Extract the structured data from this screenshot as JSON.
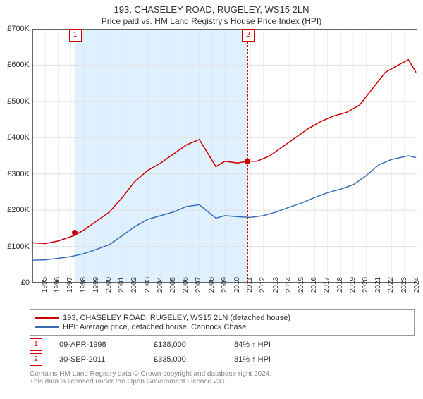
{
  "title": "193, CHASELEY ROAD, RUGELEY, WS15 2LN",
  "subtitle": "Price paid vs. HM Land Registry's House Price Index (HPI)",
  "chart": {
    "type": "line",
    "background_color": "#ffffff",
    "grid_color": "#e0e0e0",
    "shade_color": "#dff0ff",
    "axis_color": "#666666",
    "title_fontsize": 13,
    "label_fontsize": 11,
    "tick_fontsize": 10,
    "x": {
      "start_year": 1995,
      "end_year": 2025,
      "tick_step": 1
    },
    "y": {
      "min": 0,
      "max": 700000,
      "tick_step": 100000,
      "tick_labels": [
        "£0",
        "£100K",
        "£200K",
        "£300K",
        "£400K",
        "£500K",
        "£600K",
        "£700K"
      ]
    },
    "series": [
      {
        "name": "193, CHASELEY ROAD, RUGELEY, WS15 2LN (detached house)",
        "color": "#cc0000",
        "line_width": 1.5,
        "data": [
          [
            1995.0,
            110000
          ],
          [
            1996.0,
            108000
          ],
          [
            1997.0,
            115000
          ],
          [
            1998.25,
            130000
          ],
          [
            1999.0,
            145000
          ],
          [
            2000.0,
            170000
          ],
          [
            2001.0,
            195000
          ],
          [
            2002.0,
            235000
          ],
          [
            2003.0,
            280000
          ],
          [
            2004.0,
            310000
          ],
          [
            2005.0,
            330000
          ],
          [
            2006.0,
            355000
          ],
          [
            2007.0,
            380000
          ],
          [
            2008.0,
            395000
          ],
          [
            2008.7,
            355000
          ],
          [
            2009.3,
            320000
          ],
          [
            2010.0,
            335000
          ],
          [
            2011.0,
            330000
          ],
          [
            2011.75,
            335000
          ],
          [
            2012.5,
            335000
          ],
          [
            2013.5,
            350000
          ],
          [
            2014.5,
            375000
          ],
          [
            2015.5,
            400000
          ],
          [
            2016.5,
            425000
          ],
          [
            2017.5,
            445000
          ],
          [
            2018.5,
            460000
          ],
          [
            2019.5,
            470000
          ],
          [
            2020.5,
            490000
          ],
          [
            2021.5,
            535000
          ],
          [
            2022.5,
            580000
          ],
          [
            2023.5,
            600000
          ],
          [
            2024.3,
            615000
          ],
          [
            2024.9,
            580000
          ]
        ]
      },
      {
        "name": "HPI: Average price, detached house, Cannock Chase",
        "color": "#3a6fb7",
        "line_width": 1.5,
        "data": [
          [
            1995.0,
            62000
          ],
          [
            1996.0,
            63000
          ],
          [
            1997.0,
            67000
          ],
          [
            1998.0,
            72000
          ],
          [
            1999.0,
            80000
          ],
          [
            2000.0,
            92000
          ],
          [
            2001.0,
            105000
          ],
          [
            2002.0,
            130000
          ],
          [
            2003.0,
            155000
          ],
          [
            2004.0,
            175000
          ],
          [
            2005.0,
            185000
          ],
          [
            2006.0,
            195000
          ],
          [
            2007.0,
            210000
          ],
          [
            2008.0,
            215000
          ],
          [
            2008.7,
            195000
          ],
          [
            2009.3,
            178000
          ],
          [
            2010.0,
            185000
          ],
          [
            2011.0,
            182000
          ],
          [
            2012.0,
            180000
          ],
          [
            2013.0,
            185000
          ],
          [
            2014.0,
            195000
          ],
          [
            2015.0,
            208000
          ],
          [
            2016.0,
            220000
          ],
          [
            2017.0,
            235000
          ],
          [
            2018.0,
            248000
          ],
          [
            2019.0,
            258000
          ],
          [
            2020.0,
            270000
          ],
          [
            2021.0,
            295000
          ],
          [
            2022.0,
            325000
          ],
          [
            2023.0,
            340000
          ],
          [
            2024.3,
            350000
          ],
          [
            2024.9,
            345000
          ]
        ]
      }
    ],
    "sales": [
      {
        "n": "1",
        "year": 1998.27,
        "price": 138000,
        "date": "09-APR-1998",
        "price_label": "£138,000",
        "pct": "84% ↑ HPI"
      },
      {
        "n": "2",
        "year": 2011.75,
        "price": 335000,
        "date": "30-SEP-2011",
        "price_label": "£335,000",
        "pct": "81% ↑ HPI"
      }
    ],
    "shade": {
      "from_year": 1998.27,
      "to_year": 2011.75
    }
  },
  "legend": {
    "items": [
      {
        "color": "#cc0000",
        "label": "193, CHASELEY ROAD, RUGELEY, WS15 2LN (detached house)"
      },
      {
        "color": "#3a6fb7",
        "label": "HPI: Average price, detached house, Cannock Chase"
      }
    ]
  },
  "footer": {
    "line1": "Contains HM Land Registry data © Crown copyright and database right 2024.",
    "line2": "This data is licensed under the Open Government Licence v3.0."
  }
}
